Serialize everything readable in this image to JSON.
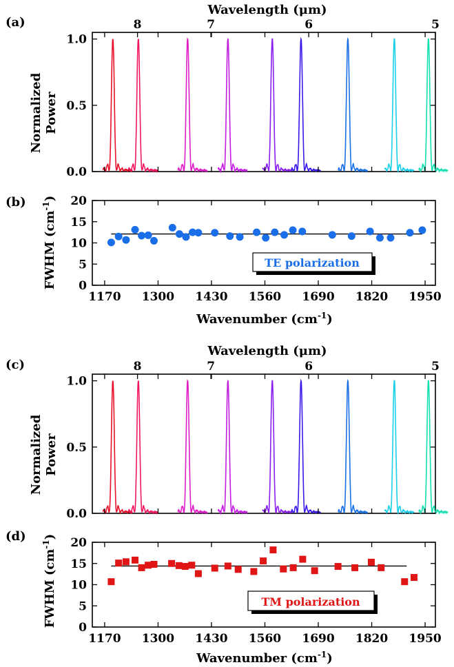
{
  "panels": [
    {
      "id": "a",
      "kind": "spectra",
      "label": "(a)",
      "xtitle": "Wavelength (μm)",
      "ylabel": [
        "Normalized",
        "Power"
      ],
      "xticks": [
        "1170",
        "1300",
        "1430",
        "1560",
        "1690",
        "1820",
        "1950"
      ],
      "yticks": [
        "0.0",
        "0.5",
        "1.0"
      ],
      "topticks": [
        "8",
        "7",
        "6",
        "5"
      ]
    },
    {
      "id": "b",
      "kind": "fwhm",
      "label": "(b)",
      "xlabel": "Wavenumber (cm⁻¹)",
      "ylabel": "FWHM (cm⁻¹)",
      "xticks": [
        "1170",
        "1300",
        "1430",
        "1560",
        "1690",
        "1820",
        "1950"
      ],
      "yticks": [
        "0",
        "5",
        "10",
        "15",
        "20"
      ],
      "legend": "TE polarization"
    },
    {
      "id": "c",
      "kind": "spectra",
      "label": "(c)",
      "xtitle": "Wavelength (μm)",
      "ylabel": [
        "Normalized",
        "Power"
      ],
      "xticks": [
        "1170",
        "1300",
        "1430",
        "1560",
        "1690",
        "1820",
        "1950"
      ],
      "yticks": [
        "0.0",
        "0.5",
        "1.0"
      ],
      "topticks": [
        "8",
        "7",
        "6",
        "5"
      ]
    },
    {
      "id": "d",
      "kind": "fwhm",
      "label": "(d)",
      "xlabel": "Wavenumber (cm⁻¹)",
      "ylabel": "FWHM (cm⁻¹)",
      "xticks": [
        "1170",
        "1300",
        "1430",
        "1560",
        "1690",
        "1820",
        "1950"
      ],
      "yticks": [
        "0",
        "5",
        "10",
        "15",
        "20"
      ],
      "legend": "TM polarization"
    }
  ],
  "chart_data": [
    {
      "panel": "a",
      "type": "line",
      "title": "",
      "xlabel": "Wavenumber (cm⁻¹)",
      "ylabel": "Normalized Power",
      "x2label": "Wavelength (μm)",
      "xlim": [
        1140,
        1975
      ],
      "ylim": [
        0,
        1.05
      ],
      "x2ticks": [
        {
          "label": "8",
          "wavenumber": 1250
        },
        {
          "label": "7",
          "wavenumber": 1428.6
        },
        {
          "label": "6",
          "wavenumber": 1666.7
        },
        {
          "label": "5",
          "wavenumber": 2000
        }
      ],
      "grid": false,
      "peak_centers": [
        1190,
        1252,
        1372,
        1470,
        1578,
        1648,
        1762,
        1875,
        1958
      ],
      "peak_colors": [
        "#e8102a",
        "#ef1660",
        "#e01cc8",
        "#c31ee0",
        "#8a1ef0",
        "#3a18e8",
        "#1a72e6",
        "#18d0ea",
        "#12e0b0"
      ]
    },
    {
      "panel": "b",
      "type": "scatter",
      "title": "",
      "xlabel": "Wavenumber (cm⁻¹)",
      "ylabel": "FWHM (cm⁻¹)",
      "xlim": [
        1140,
        1975
      ],
      "ylim": [
        0,
        20
      ],
      "grid": false,
      "series": [
        {
          "name": "TE polarization",
          "color": "#1a6fe8",
          "marker": "circle",
          "x": [
            1186,
            1204,
            1222,
            1244,
            1260,
            1276,
            1290,
            1335,
            1352,
            1368,
            1384,
            1398,
            1438,
            1475,
            1499,
            1540,
            1562,
            1584,
            1607,
            1628,
            1651,
            1724,
            1771,
            1816,
            1840,
            1866,
            1913,
            1943
          ],
          "y": [
            10.1,
            11.5,
            10.7,
            13.1,
            11.7,
            11.8,
            10.5,
            13.6,
            12.1,
            11.4,
            12.5,
            12.4,
            12.4,
            11.6,
            11.4,
            12.5,
            11.2,
            12.5,
            11.9,
            13.0,
            12.7,
            11.9,
            11.6,
            12.7,
            11.2,
            11.2,
            12.4,
            13.0
          ]
        }
      ],
      "fit": {
        "x": [
          1186,
          1943
        ],
        "y": [
          12.1,
          12.1
        ]
      }
    },
    {
      "panel": "c",
      "type": "line",
      "title": "",
      "xlabel": "Wavenumber (cm⁻¹)",
      "ylabel": "Normalized Power",
      "x2label": "Wavelength (μm)",
      "xlim": [
        1140,
        1975
      ],
      "ylim": [
        0,
        1.05
      ],
      "x2ticks": [
        {
          "label": "8",
          "wavenumber": 1250
        },
        {
          "label": "7",
          "wavenumber": 1428.6
        },
        {
          "label": "6",
          "wavenumber": 1666.7
        },
        {
          "label": "5",
          "wavenumber": 2000
        }
      ],
      "grid": false,
      "peak_centers": [
        1190,
        1252,
        1372,
        1470,
        1578,
        1648,
        1762,
        1875,
        1958
      ],
      "peak_colors": [
        "#e8102a",
        "#ef1660",
        "#e01cc8",
        "#c31ee0",
        "#8a1ef0",
        "#3a18e8",
        "#1a72e6",
        "#18d0ea",
        "#12e0b0"
      ]
    },
    {
      "panel": "d",
      "type": "scatter",
      "title": "",
      "xlabel": "Wavenumber (cm⁻¹)",
      "ylabel": "FWHM (cm⁻¹)",
      "xlim": [
        1140,
        1975
      ],
      "ylim": [
        0,
        20
      ],
      "grid": false,
      "series": [
        {
          "name": "TM polarization",
          "color": "#e01515",
          "marker": "square",
          "x": [
            1186,
            1204,
            1222,
            1244,
            1260,
            1276,
            1290,
            1333,
            1351,
            1366,
            1382,
            1398,
            1438,
            1470,
            1495,
            1533,
            1556,
            1580,
            1605,
            1629,
            1652,
            1681,
            1738,
            1779,
            1819,
            1843,
            1900,
            1923
          ],
          "y": [
            10.7,
            15.1,
            15.4,
            15.8,
            14.0,
            14.6,
            14.8,
            15.0,
            14.5,
            14.3,
            14.6,
            12.6,
            13.9,
            14.4,
            13.6,
            13.1,
            15.6,
            18.2,
            13.7,
            14.0,
            16.0,
            13.3,
            14.3,
            14.0,
            15.3,
            14.0,
            10.7,
            11.7
          ]
        }
      ],
      "fit": {
        "x": [
          1186,
          1905
        ],
        "y": [
          14.4,
          14.4
        ]
      }
    }
  ]
}
